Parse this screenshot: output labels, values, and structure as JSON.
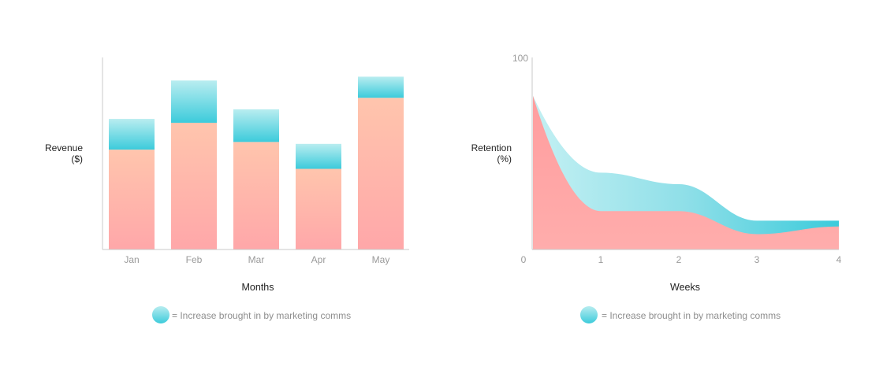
{
  "charts": [
    {
      "type": "bar",
      "categories": [
        "Jan",
        "Feb",
        "Mar",
        "Apr",
        "May"
      ],
      "series": [
        {
          "name": "",
          "values": [
            52,
            66,
            56,
            42,
            79
          ]
        },
        {
          "name": "Increase brought in by marketing comms",
          "values": [
            16,
            22,
            17,
            13,
            11
          ]
        }
      ],
      "ylim": [
        0,
        100
      ],
      "ylabel_lines": [
        "Revenue",
        "($)"
      ],
      "xlabel": "Months",
      "legend_text": "= Increase brought in by marketing comms"
    },
    {
      "type": "area",
      "x": [
        0,
        1,
        2,
        3,
        4
      ],
      "x_ticks": [
        "0",
        "1",
        "2",
        "3",
        "4"
      ],
      "y_ticks": [
        "100"
      ],
      "series": [
        {
          "name": "",
          "values": [
            80,
            20,
            20,
            8,
            12
          ]
        },
        {
          "name": "Increase brought in by marketing comms",
          "values": [
            0,
            20,
            14,
            7,
            3
          ]
        }
      ],
      "ylim": [
        0,
        100
      ],
      "ylabel_lines": [
        "Retention",
        "(%)"
      ],
      "xlabel": "Weeks",
      "legend_text": "= Increase brought in by marketing comms"
    }
  ],
  "colors": {
    "base_top": "#ffc5ad",
    "base_bottom": "#ffa7a9",
    "increase_top": "#b9edf0",
    "increase_bottom": "#3ccbdb",
    "axis": "#c8c8c8"
  }
}
